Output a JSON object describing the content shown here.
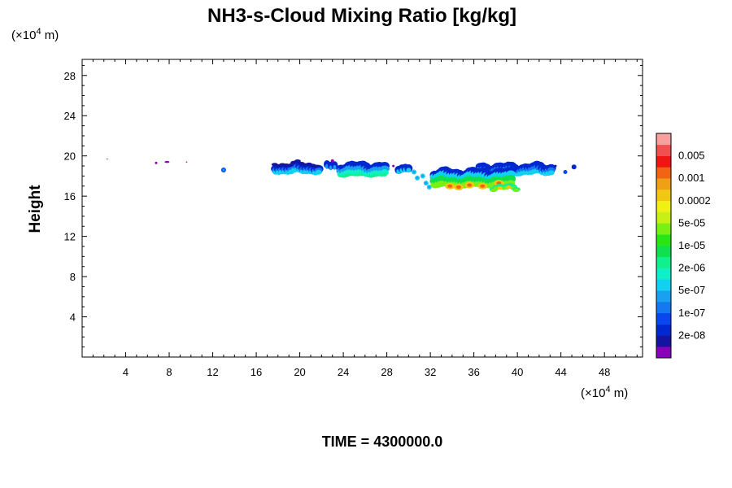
{
  "chart_data": {
    "type": "heatmap",
    "title": "NH3-s-Cloud Mixing Ratio [kg/kg]",
    "ylabel": "Height",
    "xlabel": "",
    "x_unit": "(×10⁴ m)",
    "y_unit": "(×10⁴ m)",
    "x_scale_label": "(×10",
    "x_scale_exp": "4",
    "x_scale_tail": " m)",
    "y_scale_label": "(×10",
    "y_scale_exp": "4",
    "y_scale_tail": " m)",
    "xlim": [
      0,
      51.5
    ],
    "ylim": [
      0,
      29.6
    ],
    "x_ticks": [
      4,
      8,
      12,
      16,
      20,
      24,
      28,
      32,
      36,
      40,
      44,
      48
    ],
    "x_tick_labels": [
      "4",
      "8",
      "12",
      "16",
      "20",
      "24",
      "28",
      "32",
      "36",
      "40",
      "44",
      "48"
    ],
    "y_ticks": [
      4,
      8,
      12,
      16,
      20,
      24,
      28
    ],
    "y_tick_labels": [
      "4",
      "8",
      "12",
      "16",
      "20",
      "24",
      "28"
    ],
    "grid": false,
    "colorbar": {
      "placement": "right",
      "colors": [
        "#8a00b8",
        "#1414a0",
        "#0028d0",
        "#0a46f0",
        "#1478f0",
        "#1aa0f0",
        "#10d2f0",
        "#10f0c8",
        "#10f08c",
        "#10e050",
        "#28e614",
        "#78f014",
        "#c8f014",
        "#f0f014",
        "#f0c814",
        "#f0a014",
        "#f06414",
        "#f01414",
        "#f05050",
        "#f8a0a0"
      ],
      "tick_labels": [
        "2e-08",
        "1e-07",
        "5e-07",
        "2e-06",
        "1e-05",
        "5e-05",
        "0.0002",
        "0.001",
        "0.005"
      ]
    },
    "cloud_regions": [
      {
        "x0": 17.6,
        "x1": 22.0,
        "y0": 18.1,
        "y1": 19.4,
        "level": "2e-08 to 5e-07"
      },
      {
        "x0": 22.5,
        "x1": 23.6,
        "y0": 18.3,
        "y1": 19.5,
        "level": "2e-08 to 1e-07"
      },
      {
        "x0": 23.6,
        "x1": 28.1,
        "y0": 17.9,
        "y1": 19.4,
        "level": "2e-08 to 2e-06"
      },
      {
        "x0": 28.9,
        "x1": 30.2,
        "y0": 18.3,
        "y1": 19.4,
        "level": "2e-08 to 5e-07"
      },
      {
        "x0": 32.2,
        "x1": 39.8,
        "y0": 16.6,
        "y1": 18.6,
        "level": "5e-07 to 0.0002"
      },
      {
        "x0": 36.5,
        "x1": 43.3,
        "y0": 18.0,
        "y1": 19.3,
        "level": "2e-08 to 5e-07"
      },
      {
        "x0": 37.6,
        "x1": 40.2,
        "y0": 16.5,
        "y1": 17.2,
        "level": "5e-06 to 5e-05"
      },
      {
        "x0": 12.8,
        "x1": 13.2,
        "y0": 18.4,
        "y1": 18.8,
        "level": "1e-07"
      },
      {
        "x0": 6.5,
        "x1": 8.4,
        "y0": 19.1,
        "y1": 19.5,
        "level": "2e-08"
      },
      {
        "x0": 44.2,
        "x1": 45.6,
        "y0": 18.2,
        "y1": 19.3,
        "level": "2e-08 to 1e-07"
      }
    ]
  },
  "footer": {
    "time_label": "TIME = 4300000.0"
  }
}
